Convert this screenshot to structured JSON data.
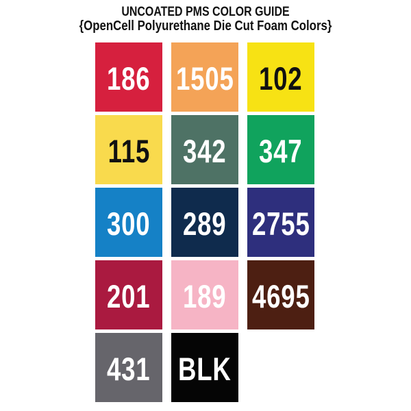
{
  "header": {
    "title": "UNCOATED PMS COLOR GUIDE",
    "subtitle": "{OpenCell Polyurethane Die Cut Foam Colors}",
    "text_color": "#111111"
  },
  "grid": {
    "columns": 3,
    "rows": 5,
    "background": "#ffffff"
  },
  "swatches": [
    {
      "label": "186",
      "color": "#d6203e",
      "text_color": "#ffffff"
    },
    {
      "label": "1505",
      "color": "#f4a357",
      "text_color": "#ffffff"
    },
    {
      "label": "102",
      "color": "#f7e214",
      "text_color": "#111111"
    },
    {
      "label": "115",
      "color": "#f9da4d",
      "text_color": "#111111"
    },
    {
      "label": "342",
      "color": "#4e7265",
      "text_color": "#ffffff"
    },
    {
      "label": "347",
      "color": "#10a35d",
      "text_color": "#ffffff"
    },
    {
      "label": "300",
      "color": "#1581c6",
      "text_color": "#ffffff"
    },
    {
      "label": "289",
      "color": "#0f2b4d",
      "text_color": "#ffffff"
    },
    {
      "label": "2755",
      "color": "#2e2f7d",
      "text_color": "#ffffff"
    },
    {
      "label": "201",
      "color": "#aa1a40",
      "text_color": "#ffffff"
    },
    {
      "label": "189",
      "color": "#f6b4c5",
      "text_color": "#ffffff"
    },
    {
      "label": "4695",
      "color": "#4d1f12",
      "text_color": "#ffffff"
    },
    {
      "label": "431",
      "color": "#66656b",
      "text_color": "#ffffff"
    },
    {
      "label": "BLK",
      "color": "#050505",
      "text_color": "#ffffff"
    }
  ]
}
